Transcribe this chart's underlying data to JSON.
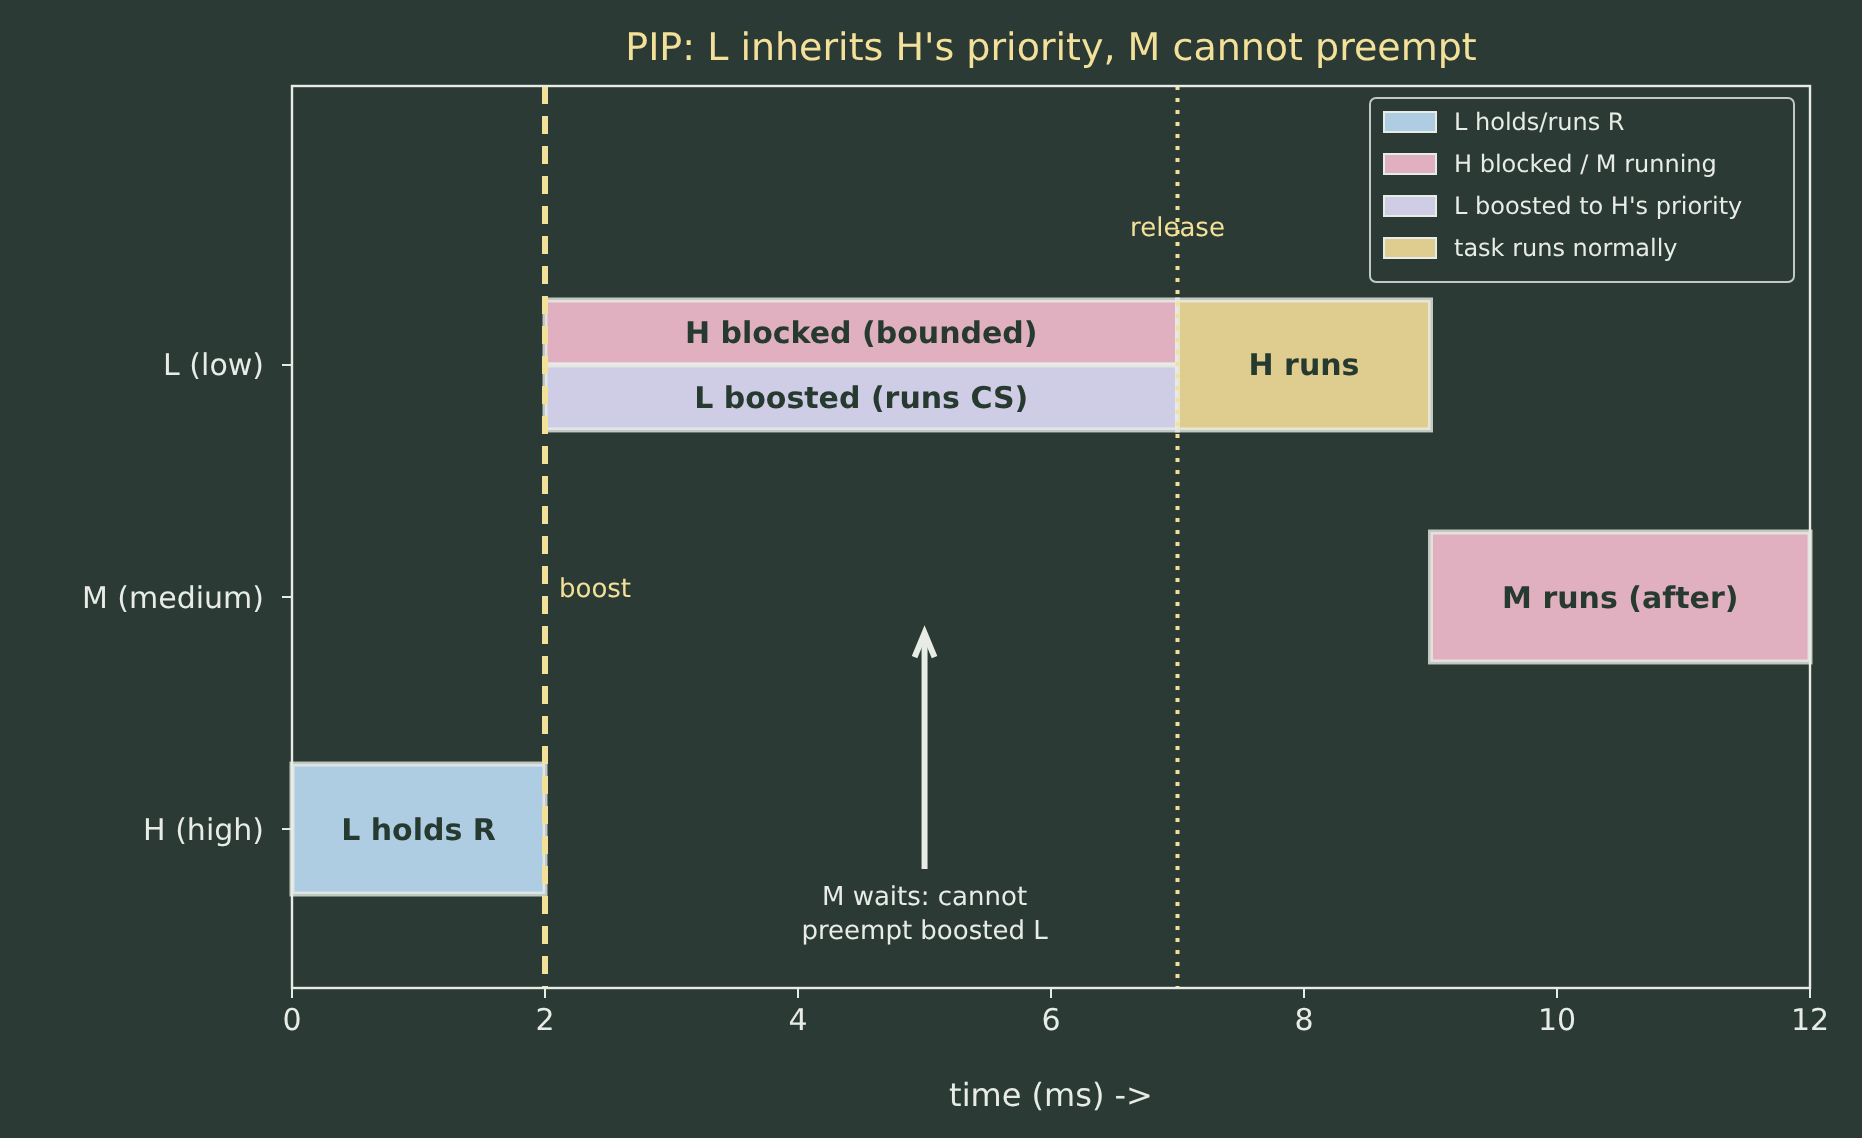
{
  "chart_data": {
    "type": "bar",
    "orientation": "horizontal",
    "title": "PIP: L inherits H's priority, M cannot preempt",
    "xlabel": "time (ms) ->",
    "categories": [
      "L (low)",
      "M (medium)",
      "H (high)"
    ],
    "series": [
      {
        "name": "L holds/runs R",
        "color": "#aecde3",
        "values": [
          null,
          null,
          2
        ],
        "base": [
          null,
          null,
          0
        ],
        "value_labels": [
          null,
          null,
          "L holds R"
        ]
      },
      {
        "name": "H blocked / M running",
        "color": "#e0b0c0",
        "values": [
          5,
          3,
          null
        ],
        "base": [
          2,
          9,
          null
        ],
        "value_labels": [
          "H blocked (bounded)",
          "M runs (after)",
          null
        ]
      },
      {
        "name": "L boosted to H's priority",
        "color": "#cfcde6",
        "values": [
          5,
          null,
          null
        ],
        "base": [
          2,
          null,
          null
        ],
        "value_labels": [
          "L boosted (runs CS)",
          null,
          null
        ]
      },
      {
        "name": "task runs normally",
        "color": "#dfcd8f",
        "values": [
          2,
          null,
          null
        ],
        "base": [
          7,
          null,
          null
        ],
        "value_labels": [
          "H runs",
          null,
          null
        ]
      }
    ],
    "xlim": [
      0,
      12
    ],
    "xticks": [
      0,
      2,
      4,
      6,
      8,
      10,
      12
    ],
    "ref_lines": [
      {
        "axis": "x",
        "value": 2,
        "label": "boost",
        "color": "#f3e19a",
        "line_style": "dashed"
      },
      {
        "axis": "x",
        "value": 7,
        "label": "release",
        "color": "#f3e19a",
        "line_style": "dotted"
      }
    ],
    "annotations": [
      "M waits: cannot preempt boosted L"
    ],
    "legend": "top right",
    "grid": false
  }
}
